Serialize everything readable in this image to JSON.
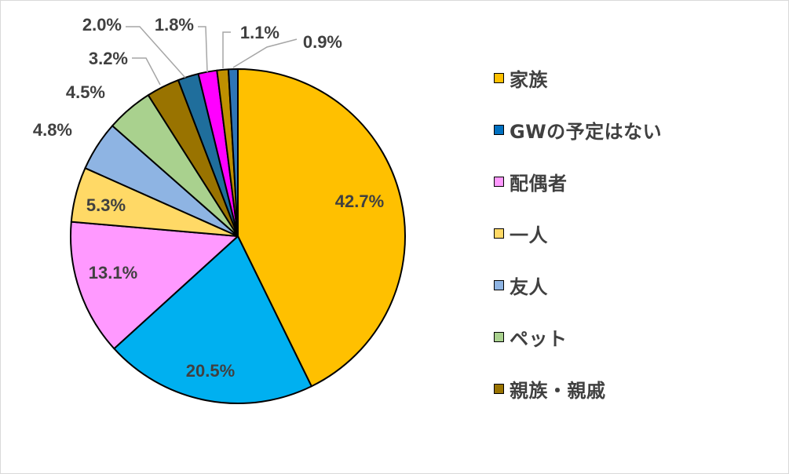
{
  "chart_data": {
    "type": "pie",
    "title": "",
    "start_angle_deg": 0,
    "direction": "clockwise",
    "slices": [
      {
        "label": "家族",
        "value": 42.7,
        "value_label": "42.7%",
        "color": "#FFC000"
      },
      {
        "label": "GWの予定はない",
        "value": 20.5,
        "value_label": "20.5%",
        "color": "#00B0F0"
      },
      {
        "label": "配偶者",
        "value": 13.1,
        "value_label": "13.1%",
        "color": "#FF99FF"
      },
      {
        "label": "一人",
        "value": 5.3,
        "value_label": "5.3%",
        "color": "#FFD966"
      },
      {
        "label": "友人",
        "value": 4.8,
        "value_label": "4.8%",
        "color": "#8EB4E3"
      },
      {
        "label": "ペット",
        "value": 4.5,
        "value_label": "4.5%",
        "color": "#A9D18E"
      },
      {
        "label": "親族・親戚",
        "value": 3.2,
        "value_label": "3.2%",
        "color": "#997300"
      },
      {
        "label": "",
        "value": 2.0,
        "value_label": "2.0%",
        "color": "#1F6E9C"
      },
      {
        "label": "",
        "value": 1.8,
        "value_label": "1.8%",
        "color": "#FF00FF"
      },
      {
        "label": "",
        "value": 1.1,
        "value_label": "1.1%",
        "color": "#C09000"
      },
      {
        "label": "",
        "value": 0.9,
        "value_label": "0.9%",
        "color": "#2E75B6"
      }
    ],
    "legend": {
      "position": "right",
      "items": [
        {
          "label": "家族",
          "color": "#FFC000"
        },
        {
          "label": "GWの予定はない",
          "color": "#0070C0"
        },
        {
          "label": "配偶者",
          "color": "#FF99FF"
        },
        {
          "label": "一人",
          "color": "#FFD966"
        },
        {
          "label": "友人",
          "color": "#8EB4E3"
        },
        {
          "label": "ペット",
          "color": "#A9D18E"
        },
        {
          "label": "親族・親戚",
          "color": "#997300"
        }
      ]
    }
  }
}
